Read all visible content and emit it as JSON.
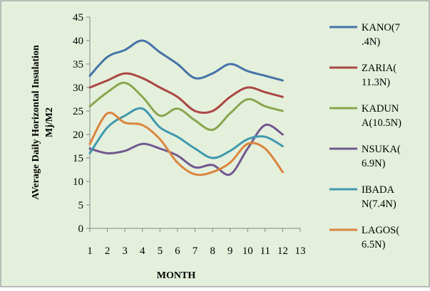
{
  "chart_data": {
    "type": "line",
    "background_color": "#e4f0dc",
    "border_color": "#7f7f7f",
    "xlabel": "MONTH",
    "ylabel": "AVerage Daily Horizontal Insulation Mj/M2",
    "ylabel_lines": [
      "AVerage Daily Horizontal Insulation",
      "Mj/M2"
    ],
    "xlim": [
      1,
      13
    ],
    "ylim": [
      0,
      45
    ],
    "x_ticks": [
      1,
      2,
      3,
      4,
      5,
      6,
      7,
      8,
      9,
      10,
      11,
      12,
      13
    ],
    "y_ticks": [
      0,
      5,
      10,
      15,
      20,
      25,
      30,
      35,
      40,
      45
    ],
    "grid": false,
    "legend_position": "right",
    "x": [
      1,
      2,
      3,
      4,
      5,
      6,
      7,
      8,
      9,
      10,
      11,
      12
    ],
    "series": [
      {
        "name": "KANO(7.4N)",
        "legend_lines": [
          "KANO(7",
          ".4N)"
        ],
        "color": "#4572a7",
        "values": [
          32.5,
          36.5,
          38,
          40,
          37.5,
          35,
          32,
          33,
          35,
          33.5,
          32.5,
          31.5
        ]
      },
      {
        "name": "ZARIA(11.3N)",
        "legend_lines": [
          "ZARIA(",
          "11.3N)"
        ],
        "color": "#aa4643",
        "values": [
          30,
          31.5,
          33,
          32,
          30,
          28,
          25,
          25,
          28,
          30,
          29,
          28
        ]
      },
      {
        "name": "KADUNA(10.5N)",
        "legend_lines": [
          "KADUN",
          "A(10.5N)"
        ],
        "color": "#89a54e",
        "values": [
          26,
          29,
          31,
          28,
          24,
          25.5,
          23,
          21,
          24.5,
          27.5,
          26,
          25
        ]
      },
      {
        "name": "NSUKA(6.9N)",
        "legend_lines": [
          "NSUKA(",
          "6.9N)"
        ],
        "color": "#71588f",
        "values": [
          17,
          16,
          16.5,
          18,
          17,
          15.5,
          13,
          13.5,
          11.5,
          17,
          22,
          20
        ]
      },
      {
        "name": "IBADAN(7.4N)",
        "legend_lines": [
          "IBADA",
          "N(7.4N)"
        ],
        "color": "#4198af",
        "values": [
          16,
          21.5,
          24,
          25.5,
          21.5,
          19.5,
          17,
          15,
          16.5,
          19,
          19.5,
          17.5
        ]
      },
      {
        "name": "LAGOS(6.5N)",
        "legend_lines": [
          "LAGOS(",
          "6.5N)"
        ],
        "color": "#db843d",
        "values": [
          18,
          24.5,
          22.5,
          22,
          19,
          14,
          11.5,
          12,
          14,
          18,
          17,
          12
        ]
      }
    ]
  }
}
